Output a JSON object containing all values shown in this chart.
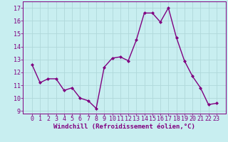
{
  "x": [
    0,
    1,
    2,
    3,
    4,
    5,
    6,
    7,
    8,
    9,
    10,
    11,
    12,
    13,
    14,
    15,
    16,
    17,
    18,
    19,
    20,
    21,
    22,
    23
  ],
  "y": [
    12.6,
    11.2,
    11.5,
    11.5,
    10.6,
    10.8,
    10.0,
    9.8,
    9.2,
    12.4,
    13.1,
    13.2,
    12.9,
    14.5,
    16.6,
    16.6,
    15.9,
    17.0,
    14.7,
    12.9,
    11.7,
    10.8,
    9.5,
    9.6
  ],
  "line_color": "#800080",
  "marker": "D",
  "marker_size": 2.0,
  "line_width": 1.0,
  "bg_color": "#c8eef0",
  "grid_color": "#aadddd",
  "xlabel": "Windchill (Refroidissement éolien,°C)",
  "xlabel_color": "#800080",
  "tick_color": "#800080",
  "spine_color": "#800080",
  "ylim": [
    8.8,
    17.5
  ],
  "yticks": [
    9,
    10,
    11,
    12,
    13,
    14,
    15,
    16,
    17
  ],
  "xticks": [
    0,
    1,
    2,
    3,
    4,
    5,
    6,
    7,
    8,
    9,
    10,
    11,
    12,
    13,
    14,
    15,
    16,
    17,
    18,
    19,
    20,
    21,
    22,
    23
  ],
  "font_size": 6.0,
  "xlabel_font_size": 6.5
}
